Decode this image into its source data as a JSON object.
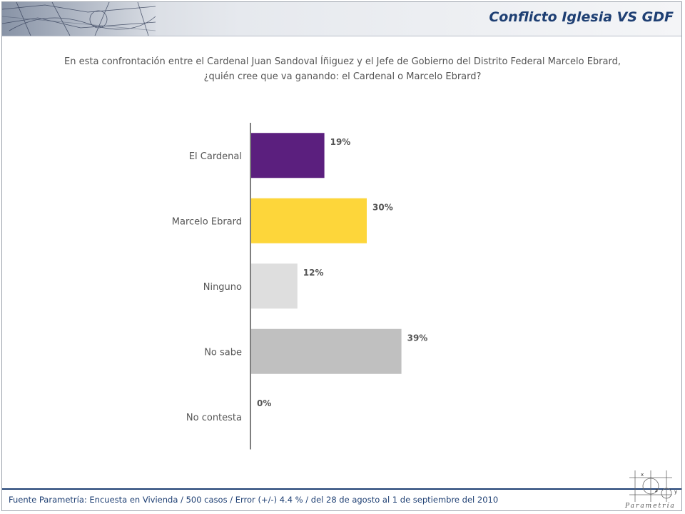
{
  "header": {
    "title": "Conflicto Iglesia VS GDF"
  },
  "question": {
    "line1": "En esta confrontación entre el Cardenal Juan Sandoval Íñiguez y el Jefe de Gobierno del Distrito Federal Marcelo Ebrard,",
    "line2": "¿quién cree que va ganando: el Cardenal o Marcelo Ebrard?"
  },
  "chart_data": {
    "type": "bar",
    "orientation": "horizontal",
    "categories": [
      "El Cardenal",
      "Marcelo Ebrard",
      "Ninguno",
      "No sabe",
      "No contesta"
    ],
    "values": [
      19,
      30,
      12,
      39,
      0
    ],
    "data_labels": [
      "19%",
      "30%",
      "12%",
      "39%",
      "0%"
    ],
    "colors": [
      "#5b1f7e",
      "#fdd63a",
      "#dedede",
      "#c0c0c0",
      "#c0c0c0"
    ],
    "xlim": [
      0,
      100
    ],
    "grid": false,
    "legend": "none"
  },
  "footer": {
    "source": "Fuente Parametría: Encuesta en Vivienda / 500 casos / Error (+/-) 4.4 % / del 28 de agosto al 1 de septiembre del 2010"
  },
  "logo": {
    "text": "Parametría",
    "axis_x": "x",
    "axis_y": "y",
    "axis_z": "z"
  },
  "colors": {
    "accent": "#1e3f73"
  }
}
